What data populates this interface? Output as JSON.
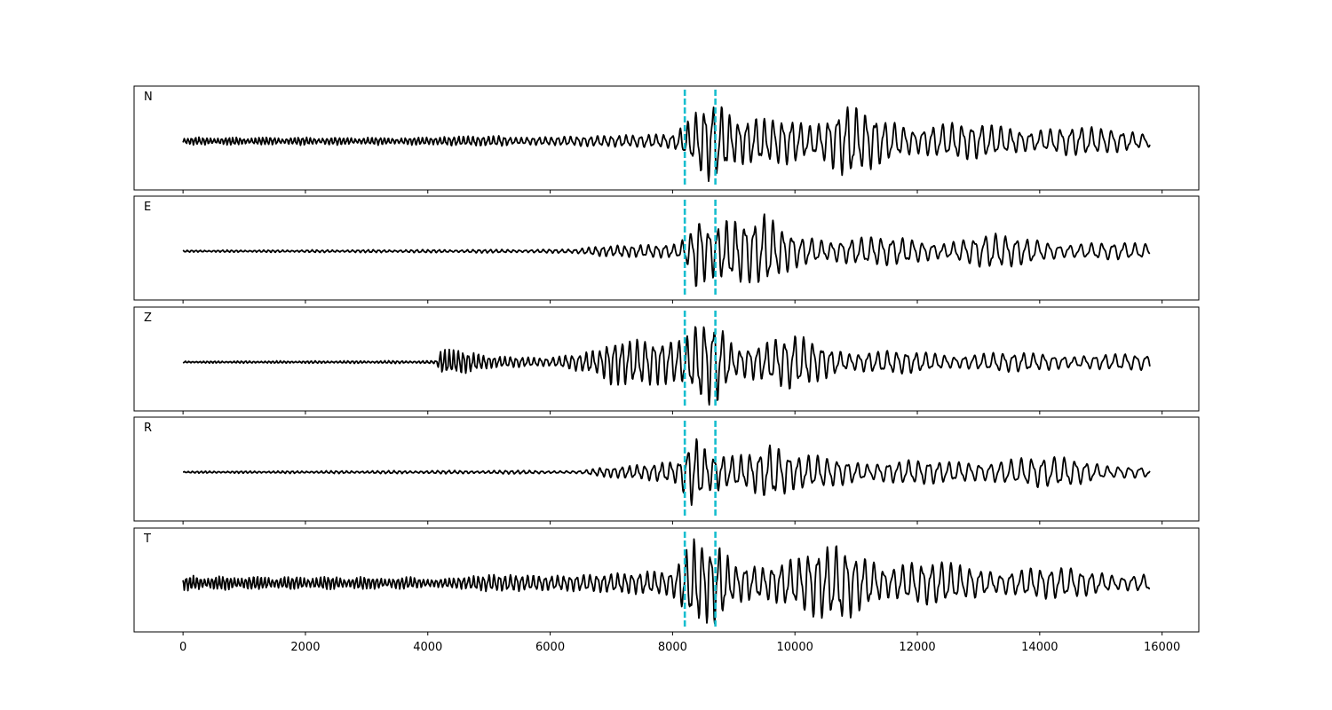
{
  "chart_data": {
    "type": "line",
    "xlim": [
      -800,
      16600
    ],
    "x_ticks": [
      0,
      2000,
      4000,
      6000,
      8000,
      10000,
      12000,
      14000,
      16000
    ],
    "x_tick_labels": [
      "0",
      "2000",
      "4000",
      "6000",
      "8000",
      "10000",
      "12000",
      "14000",
      "16000"
    ],
    "ylim": [
      -1,
      1
    ],
    "shared_x_axis": true,
    "y_ticks_shown": false,
    "grid": false,
    "trace_color": "#000000",
    "marker_color": "#17becf",
    "markers": [
      8200,
      8700
    ],
    "marker_style": "dashed",
    "x_range": [
      0,
      15800
    ],
    "panels": [
      {
        "name": "N",
        "envelope": [
          [
            0,
            0.08
          ],
          [
            4100,
            0.08
          ],
          [
            4400,
            0.12
          ],
          [
            5000,
            0.15
          ],
          [
            5200,
            0.18
          ],
          [
            5400,
            0.12
          ],
          [
            6800,
            0.14
          ],
          [
            8000,
            0.16
          ],
          [
            8300,
            0.45
          ],
          [
            8500,
            0.75
          ],
          [
            8700,
            0.8
          ],
          [
            9000,
            0.45
          ],
          [
            9500,
            0.5
          ],
          [
            10000,
            0.6
          ],
          [
            10400,
            0.5
          ],
          [
            10800,
            0.75
          ],
          [
            11500,
            0.45
          ],
          [
            13000,
            0.35
          ],
          [
            14500,
            0.3
          ],
          [
            15800,
            0.2
          ]
        ],
        "period": [
          [
            0,
            60
          ],
          [
            4000,
            70
          ],
          [
            6000,
            100
          ],
          [
            8000,
            130
          ],
          [
            10000,
            150
          ],
          [
            15800,
            170
          ]
        ]
      },
      {
        "name": "E",
        "envelope": [
          [
            0,
            0.02
          ],
          [
            6400,
            0.04
          ],
          [
            6800,
            0.12
          ],
          [
            7600,
            0.18
          ],
          [
            8100,
            0.22
          ],
          [
            8300,
            0.5
          ],
          [
            8400,
            0.95
          ],
          [
            8600,
            0.55
          ],
          [
            8900,
            0.65
          ],
          [
            9300,
            0.6
          ],
          [
            9500,
            0.75
          ],
          [
            9700,
            0.55
          ],
          [
            10000,
            0.35
          ],
          [
            11000,
            0.3
          ],
          [
            12500,
            0.25
          ],
          [
            13200,
            0.35
          ],
          [
            14500,
            0.2
          ],
          [
            15800,
            0.15
          ]
        ],
        "period": [
          [
            0,
            70
          ],
          [
            6000,
            100
          ],
          [
            8000,
            140
          ],
          [
            10000,
            160
          ],
          [
            15800,
            180
          ]
        ]
      },
      {
        "name": "Z",
        "envelope": [
          [
            0,
            0.02
          ],
          [
            4150,
            0.03
          ],
          [
            4200,
            0.25
          ],
          [
            4500,
            0.25
          ],
          [
            5000,
            0.12
          ],
          [
            6000,
            0.08
          ],
          [
            6800,
            0.25
          ],
          [
            7000,
            0.45
          ],
          [
            7800,
            0.45
          ],
          [
            8200,
            0.45
          ],
          [
            8500,
            0.9
          ],
          [
            8750,
            1.0
          ],
          [
            9000,
            0.5
          ],
          [
            9500,
            0.45
          ],
          [
            10000,
            0.55
          ],
          [
            10300,
            0.45
          ],
          [
            11000,
            0.25
          ],
          [
            12500,
            0.2
          ],
          [
            15000,
            0.18
          ],
          [
            15800,
            0.15
          ]
        ],
        "period": [
          [
            0,
            60
          ],
          [
            4000,
            70
          ],
          [
            7000,
            120
          ],
          [
            8000,
            140
          ],
          [
            10000,
            150
          ],
          [
            15800,
            170
          ]
        ]
      },
      {
        "name": "R",
        "envelope": [
          [
            0,
            0.02
          ],
          [
            6500,
            0.04
          ],
          [
            6800,
            0.12
          ],
          [
            7600,
            0.18
          ],
          [
            8100,
            0.25
          ],
          [
            8350,
            0.95
          ],
          [
            8600,
            0.55
          ],
          [
            8900,
            0.6
          ],
          [
            9200,
            0.5
          ],
          [
            9600,
            0.65
          ],
          [
            10000,
            0.35
          ],
          [
            11000,
            0.28
          ],
          [
            12500,
            0.22
          ],
          [
            13200,
            0.3
          ],
          [
            14500,
            0.3
          ],
          [
            15800,
            0.1
          ]
        ],
        "period": [
          [
            0,
            70
          ],
          [
            6000,
            100
          ],
          [
            8000,
            140
          ],
          [
            10000,
            160
          ],
          [
            15800,
            180
          ]
        ]
      },
      {
        "name": "T",
        "envelope": [
          [
            0,
            0.15
          ],
          [
            4000,
            0.12
          ],
          [
            4400,
            0.15
          ],
          [
            5000,
            0.2
          ],
          [
            6000,
            0.15
          ],
          [
            6800,
            0.18
          ],
          [
            8000,
            0.25
          ],
          [
            8350,
            0.9
          ],
          [
            8550,
            0.85
          ],
          [
            8750,
            0.95
          ],
          [
            9000,
            0.5
          ],
          [
            9600,
            0.6
          ],
          [
            10300,
            0.7
          ],
          [
            10800,
            0.75
          ],
          [
            11500,
            0.5
          ],
          [
            13000,
            0.35
          ],
          [
            14500,
            0.3
          ],
          [
            15800,
            0.2
          ]
        ],
        "period": [
          [
            0,
            60
          ],
          [
            4000,
            70
          ],
          [
            6000,
            100
          ],
          [
            8000,
            130
          ],
          [
            10000,
            150
          ],
          [
            15800,
            170
          ]
        ]
      }
    ]
  }
}
